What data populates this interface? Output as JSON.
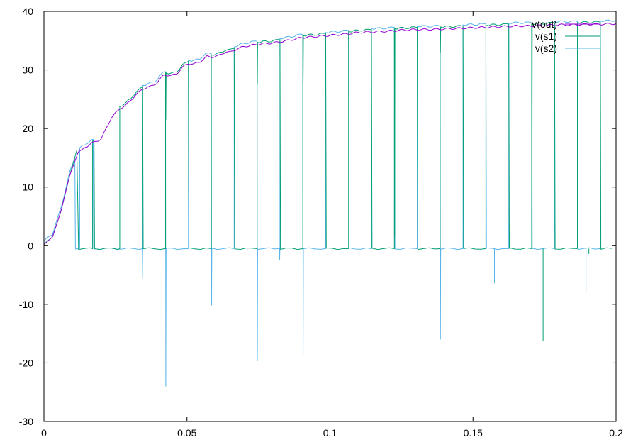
{
  "chart_data": {
    "type": "line",
    "title": "",
    "xlabel": "",
    "ylabel": "",
    "xlim": [
      0,
      0.2
    ],
    "ylim": [
      -30,
      40
    ],
    "xticks": [
      0,
      0.05,
      0.1,
      0.15,
      0.2
    ],
    "xtick_labels": [
      "0",
      "0.05",
      "0.1",
      "0.15",
      "0.2"
    ],
    "yticks": [
      -30,
      -20,
      -10,
      0,
      10,
      20,
      30,
      40
    ],
    "ytick_labels": [
      "-30",
      "-20",
      "-10",
      "0",
      "10",
      "20",
      "30",
      "40"
    ],
    "grid": false,
    "legend_position": "top-right",
    "series": [
      {
        "name": "v(out)",
        "color": "#9400d3",
        "x": [
          0,
          0.003,
          0.006,
          0.009,
          0.012,
          0.0145,
          0.0165,
          0.018,
          0.02,
          0.0235,
          0.0265,
          0.0285,
          0.031,
          0.0345,
          0.037,
          0.0395,
          0.042,
          0.0445,
          0.0465,
          0.0485,
          0.0505,
          0.0525,
          0.0545,
          0.057,
          0.0585,
          0.061,
          0.0635,
          0.065,
          0.0675,
          0.07,
          0.075,
          0.08,
          0.085,
          0.09,
          0.095,
          0.1,
          0.105,
          0.11,
          0.115,
          0.12,
          0.125,
          0.13,
          0.135,
          0.14,
          0.145,
          0.15,
          0.155,
          0.16,
          0.165,
          0.17,
          0.175,
          0.18,
          0.185,
          0.19,
          0.195,
          0.2
        ],
        "y": [
          0.2,
          1.5,
          6,
          12,
          16,
          16.8,
          17.4,
          17.8,
          18.2,
          21.8,
          23.4,
          23.9,
          25.2,
          26.8,
          27.1,
          27.8,
          29.2,
          29.0,
          29.4,
          30.5,
          31.1,
          31.0,
          31.4,
          32.3,
          32.2,
          32.4,
          33.1,
          33.0,
          33.6,
          34.0,
          34.4,
          34.6,
          35.0,
          35.5,
          35.7,
          35.9,
          36.1,
          36.4,
          36.5,
          36.6,
          36.8,
          36.9,
          36.9,
          37.0,
          37.1,
          37.2,
          37.3,
          37.4,
          37.5,
          37.5,
          37.6,
          37.7,
          37.7,
          37.8,
          37.8,
          37.9
        ]
      },
      {
        "name": "v(s1)",
        "color": "#009e73",
        "rise": [
          0,
          0.003,
          0.006,
          0.009,
          0.0115
        ],
        "rise_y": [
          0.3,
          1.5,
          6,
          12,
          16.3
        ],
        "high_intervals": [
          [
            0.017,
            0.0175
          ],
          [
            0.0265,
            0.0345
          ],
          [
            0.0425,
            0.0505
          ],
          [
            0.0585,
            0.0665
          ],
          [
            0.0745,
            0.0825
          ],
          [
            0.0905,
            0.0985
          ],
          [
            0.1065,
            0.1145
          ],
          [
            0.1225,
            0.1305
          ],
          [
            0.1385,
            0.1465
          ],
          [
            0.1545,
            0.1625
          ],
          [
            0.1705,
            0.1785
          ],
          [
            0.1865,
            0.1945
          ]
        ],
        "low_level": -0.5,
        "spike_dips": [
          [
            0.0425,
            21.5
          ],
          [
            0.0505,
            14
          ],
          [
            0.0745,
            27.5
          ],
          [
            0.0905,
            28
          ],
          [
            0.1225,
            1.5
          ],
          [
            0.1385,
            33
          ],
          [
            0.1705,
            9
          ],
          [
            0.1865,
            34
          ]
        ],
        "neg_spikes": [
          [
            0.1745,
            -16.3
          ],
          [
            0.1905,
            -1.4
          ]
        ]
      },
      {
        "name": "v(s2)",
        "color": "#56b4e9",
        "high_intervals": [
          [
            0,
            0.0108
          ],
          [
            0.0125,
            0.0172
          ],
          [
            0.0345,
            0.0425
          ],
          [
            0.0505,
            0.0585
          ],
          [
            0.0665,
            0.0745
          ],
          [
            0.0825,
            0.0905
          ],
          [
            0.0985,
            0.1065
          ],
          [
            0.1145,
            0.1225
          ],
          [
            0.1305,
            0.1385
          ],
          [
            0.1465,
            0.1545
          ],
          [
            0.1625,
            0.1705
          ],
          [
            0.1785,
            0.1865
          ],
          [
            0.1945,
            0.2
          ]
        ],
        "low_level": -0.5,
        "neg_spikes": [
          [
            0.0125,
            -0.3
          ],
          [
            0.0345,
            -5.6
          ],
          [
            0.0425,
            -24
          ],
          [
            0.0585,
            -10.2
          ],
          [
            0.0745,
            -19.7
          ],
          [
            0.0825,
            -2.4
          ],
          [
            0.0905,
            -18.7
          ],
          [
            0.1385,
            -16
          ],
          [
            0.1575,
            -6.4
          ],
          [
            0.1895,
            -7.9
          ]
        ]
      }
    ]
  },
  "colors": {
    "axis": "#000000",
    "background": "#ffffff"
  }
}
